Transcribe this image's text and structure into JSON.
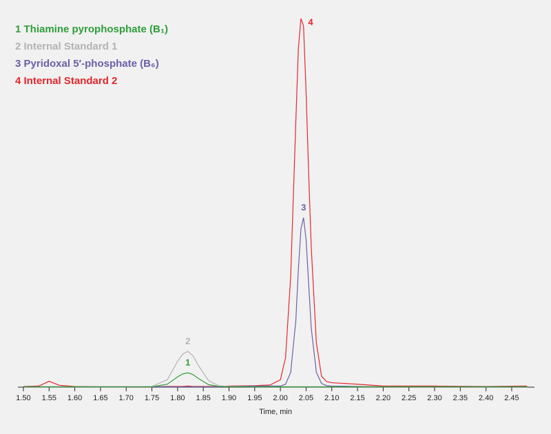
{
  "chart_data": {
    "type": "line",
    "x_label": "Time, min",
    "x": [
      1.5,
      1.53,
      1.55,
      1.57,
      1.6,
      1.65,
      1.7,
      1.75,
      1.78,
      1.8,
      1.81,
      1.82,
      1.83,
      1.84,
      1.86,
      1.88,
      1.9,
      1.95,
      1.98,
      2.0,
      2.01,
      2.02,
      2.03,
      2.035,
      2.04,
      2.045,
      2.05,
      2.055,
      2.06,
      2.07,
      2.08,
      2.09,
      2.1,
      2.15,
      2.2,
      2.3,
      2.4,
      2.48
    ],
    "series": [
      {
        "name": "1 Thiamine pyrophosphate (B₁)",
        "label": "1",
        "color": "#2e9e3a",
        "values": [
          0.1,
          0.1,
          0.1,
          0.1,
          0.1,
          0.1,
          0.1,
          0.1,
          0.8,
          2.8,
          3.6,
          3.9,
          3.4,
          2.4,
          0.7,
          0.2,
          0.1,
          0.1,
          0.1,
          0.1,
          0.1,
          0.1,
          0.1,
          0.1,
          0.1,
          0.1,
          0.1,
          0.1,
          0.1,
          0.1,
          0.1,
          0.1,
          0.1,
          0.1,
          0.1,
          0.1,
          0.1,
          0.1
        ]
      },
      {
        "name": "2 Internal Standard 1",
        "label": "2",
        "color": "#b3b3b3",
        "values": [
          0.1,
          0.1,
          0.1,
          0.1,
          0.1,
          0.1,
          0.1,
          0.2,
          2,
          7,
          9,
          9.7,
          8.5,
          6,
          1.8,
          0.4,
          0.2,
          0.1,
          0.1,
          0.1,
          0.1,
          0.1,
          0.1,
          0.1,
          0.1,
          0.1,
          0.1,
          0.1,
          0.1,
          0.1,
          0.1,
          0.1,
          0.1,
          0.1,
          0.1,
          0.1,
          0.1,
          0.1
        ]
      },
      {
        "name": "3 Pyridoxal 5′-phosphate (B₆)",
        "label": "3",
        "color": "#6b5fa8",
        "values": [
          0.1,
          0.1,
          0.1,
          0.1,
          0.1,
          0.1,
          0.1,
          0.1,
          0.1,
          0.1,
          0.1,
          0.1,
          0.1,
          0.1,
          0.1,
          0.1,
          0.2,
          0.3,
          0.3,
          0.3,
          0.8,
          4,
          18,
          32,
          43,
          46,
          40,
          28,
          16,
          4,
          1,
          0.4,
          0.3,
          0.2,
          0.1,
          0.1,
          0.1,
          0.1
        ]
      },
      {
        "name": "4 Internal Standard 2",
        "label": "4",
        "color": "#e3262b",
        "values": [
          0.2,
          0.3,
          1.6,
          0.5,
          0.2,
          0.1,
          0.1,
          0.1,
          0.2,
          0.2,
          0.2,
          0.3,
          0.2,
          0.2,
          0.2,
          0.2,
          0.3,
          0.4,
          0.6,
          2,
          8,
          30,
          72,
          92,
          100,
          98,
          80,
          58,
          38,
          12,
          3,
          1.5,
          1.2,
          0.8,
          0.3,
          0.3,
          0.2,
          0.3
        ]
      }
    ],
    "xlim": [
      1.49,
      2.49
    ],
    "xticks": [
      {
        "value": 1.5,
        "label": "1.50"
      },
      1.55,
      {
        "value": 1.6,
        "label": "1.60"
      },
      1.65,
      {
        "value": 1.7,
        "label": "1.70"
      },
      1.75,
      {
        "value": 1.8,
        "label": "1.80"
      },
      1.85,
      {
        "value": 1.9,
        "label": "1.90"
      },
      1.95,
      {
        "value": 2.0,
        "label": "2.00"
      },
      2.05,
      {
        "value": 2.1,
        "label": "2.10"
      },
      2.15,
      {
        "value": 2.2,
        "label": "2.20"
      },
      2.25,
      {
        "value": 2.3,
        "label": "2.30"
      },
      2.35,
      {
        "value": 2.4,
        "label": "2.40"
      },
      2.45
    ],
    "legend": "upper left"
  }
}
